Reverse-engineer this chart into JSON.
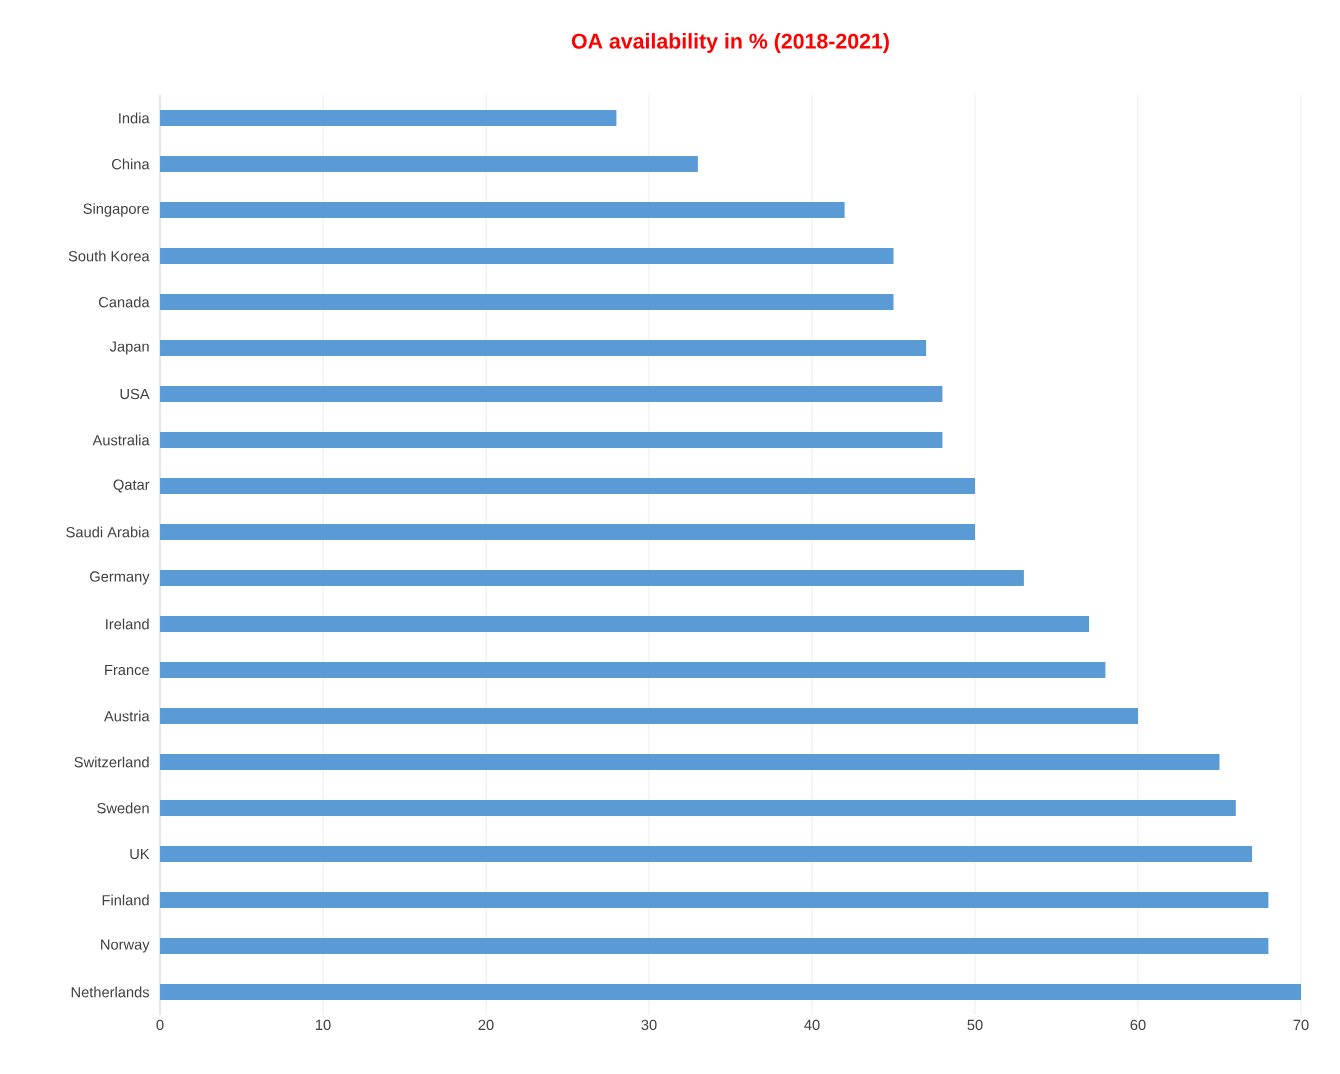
{
  "chart_data": {
    "type": "bar",
    "orientation": "horizontal",
    "title": "OA availability in % (2018-2021)",
    "categories": [
      "India",
      "China",
      "Singapore",
      "South Korea",
      "Canada",
      "Japan",
      "USA",
      "Australia",
      "Qatar",
      "Saudi Arabia",
      "Germany",
      "Ireland",
      "France",
      "Austria",
      "Switzerland",
      "Sweden",
      "UK",
      "Finland",
      "Norway",
      "Netherlands"
    ],
    "values": [
      28,
      33,
      42,
      45,
      45,
      47,
      48,
      48,
      50,
      50,
      53,
      57,
      58,
      60,
      65,
      66,
      67,
      68,
      68,
      70
    ],
    "color": "#5b9bd5",
    "xlim": [
      0,
      70
    ],
    "xticks": [
      0,
      10,
      20,
      30,
      40,
      50,
      60,
      70
    ],
    "grid": "x"
  }
}
